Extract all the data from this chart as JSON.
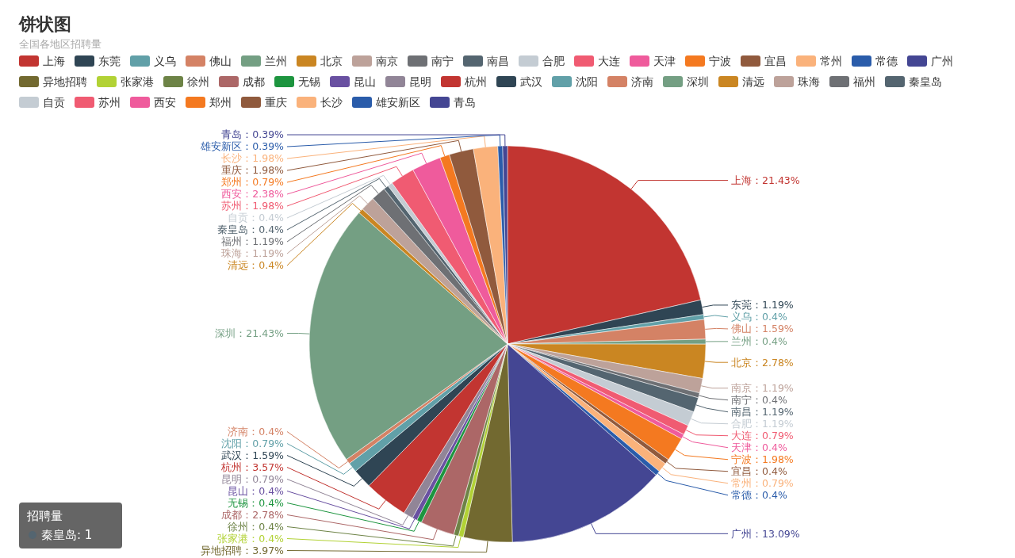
{
  "chart_data": {
    "type": "pie",
    "title": "饼状图",
    "subtitle": "全国各地区招聘量",
    "categories": [
      "上海",
      "东莞",
      "义乌",
      "佛山",
      "兰州",
      "北京",
      "南京",
      "南宁",
      "南昌",
      "合肥",
      "大连",
      "天津",
      "宁波",
      "宜昌",
      "常州",
      "常德",
      "广州",
      "异地招聘",
      "张家港",
      "徐州",
      "成都",
      "无锡",
      "昆山",
      "昆明",
      "杭州",
      "武汉",
      "沈阳",
      "济南",
      "深圳",
      "清远",
      "珠海",
      "福州",
      "秦皇岛",
      "自贡",
      "苏州",
      "西安",
      "郑州",
      "重庆",
      "长沙",
      "雄安新区",
      "青岛"
    ],
    "values": [
      21.43,
      1.19,
      0.4,
      1.59,
      0.4,
      2.78,
      1.19,
      0.4,
      1.19,
      1.19,
      0.79,
      0.4,
      1.98,
      0.4,
      0.79,
      0.4,
      13.09,
      3.97,
      0.4,
      0.4,
      2.78,
      0.4,
      0.4,
      0.79,
      3.57,
      1.59,
      0.79,
      0.4,
      21.43,
      0.4,
      1.19,
      1.19,
      0.4,
      0.4,
      1.98,
      2.38,
      0.79,
      1.98,
      1.98,
      0.39,
      0.39
    ],
    "value_labels": [
      "上海：21.43%",
      "东莞：1.19%",
      "义乌：0.4%",
      "佛山：1.59%",
      "兰州：0.4%",
      "北京：2.78%",
      "南京：1.19%",
      "南宁：0.4%",
      "南昌：1.19%",
      "合肥：1.19%",
      "大连：0.79%",
      "天津：0.4%",
      "宁波：1.98%",
      "宜昌：0.4%",
      "常州：0.79%",
      "常德：0.4%",
      "广州：13.09%",
      "异地招聘：3.97%",
      "张家港：0.4%",
      "徐州：0.4%",
      "成都：2.78%",
      "无锡：0.4%",
      "昆山：0.4%",
      "昆明：0.79%",
      "杭州：3.57%",
      "武汉：1.59%",
      "沈阳：0.79%",
      "济南：0.4%",
      "深圳：21.43%",
      "清远：0.4%",
      "珠海：1.19%",
      "福州：1.19%",
      "秦皇岛：0.4%",
      "自贡：0.4%",
      "苏州：1.98%",
      "西安：2.38%",
      "郑州：0.79%",
      "重庆：1.98%",
      "长沙：1.98%",
      "雄安新区：0.39%",
      "青岛：0.39%"
    ],
    "colors": [
      "#c23531",
      "#2f4554",
      "#61a0a8",
      "#d48265",
      "#749f83",
      "#ca8622",
      "#bda29a",
      "#6e7074",
      "#546570",
      "#c4ccd3",
      "#f05b72",
      "#ef5b9c",
      "#f47920",
      "#905a3d",
      "#fab27b",
      "#2a5caa",
      "#444693",
      "#726930",
      "#b2d235",
      "#6d8346",
      "#ac6767",
      "#1d953f",
      "#6950a1",
      "#918597",
      "#c23531",
      "#2f4554",
      "#61a0a8",
      "#d48265",
      "#749f83",
      "#ca8622",
      "#bda29a",
      "#6e7074",
      "#546570",
      "#c4ccd3",
      "#f05b72",
      "#ef5b9c",
      "#f47920",
      "#905a3d",
      "#fab27b",
      "#2a5caa",
      "#444693"
    ],
    "legend": "top",
    "annotations": [
      "招聘量",
      "秦皇岛: 1"
    ]
  }
}
